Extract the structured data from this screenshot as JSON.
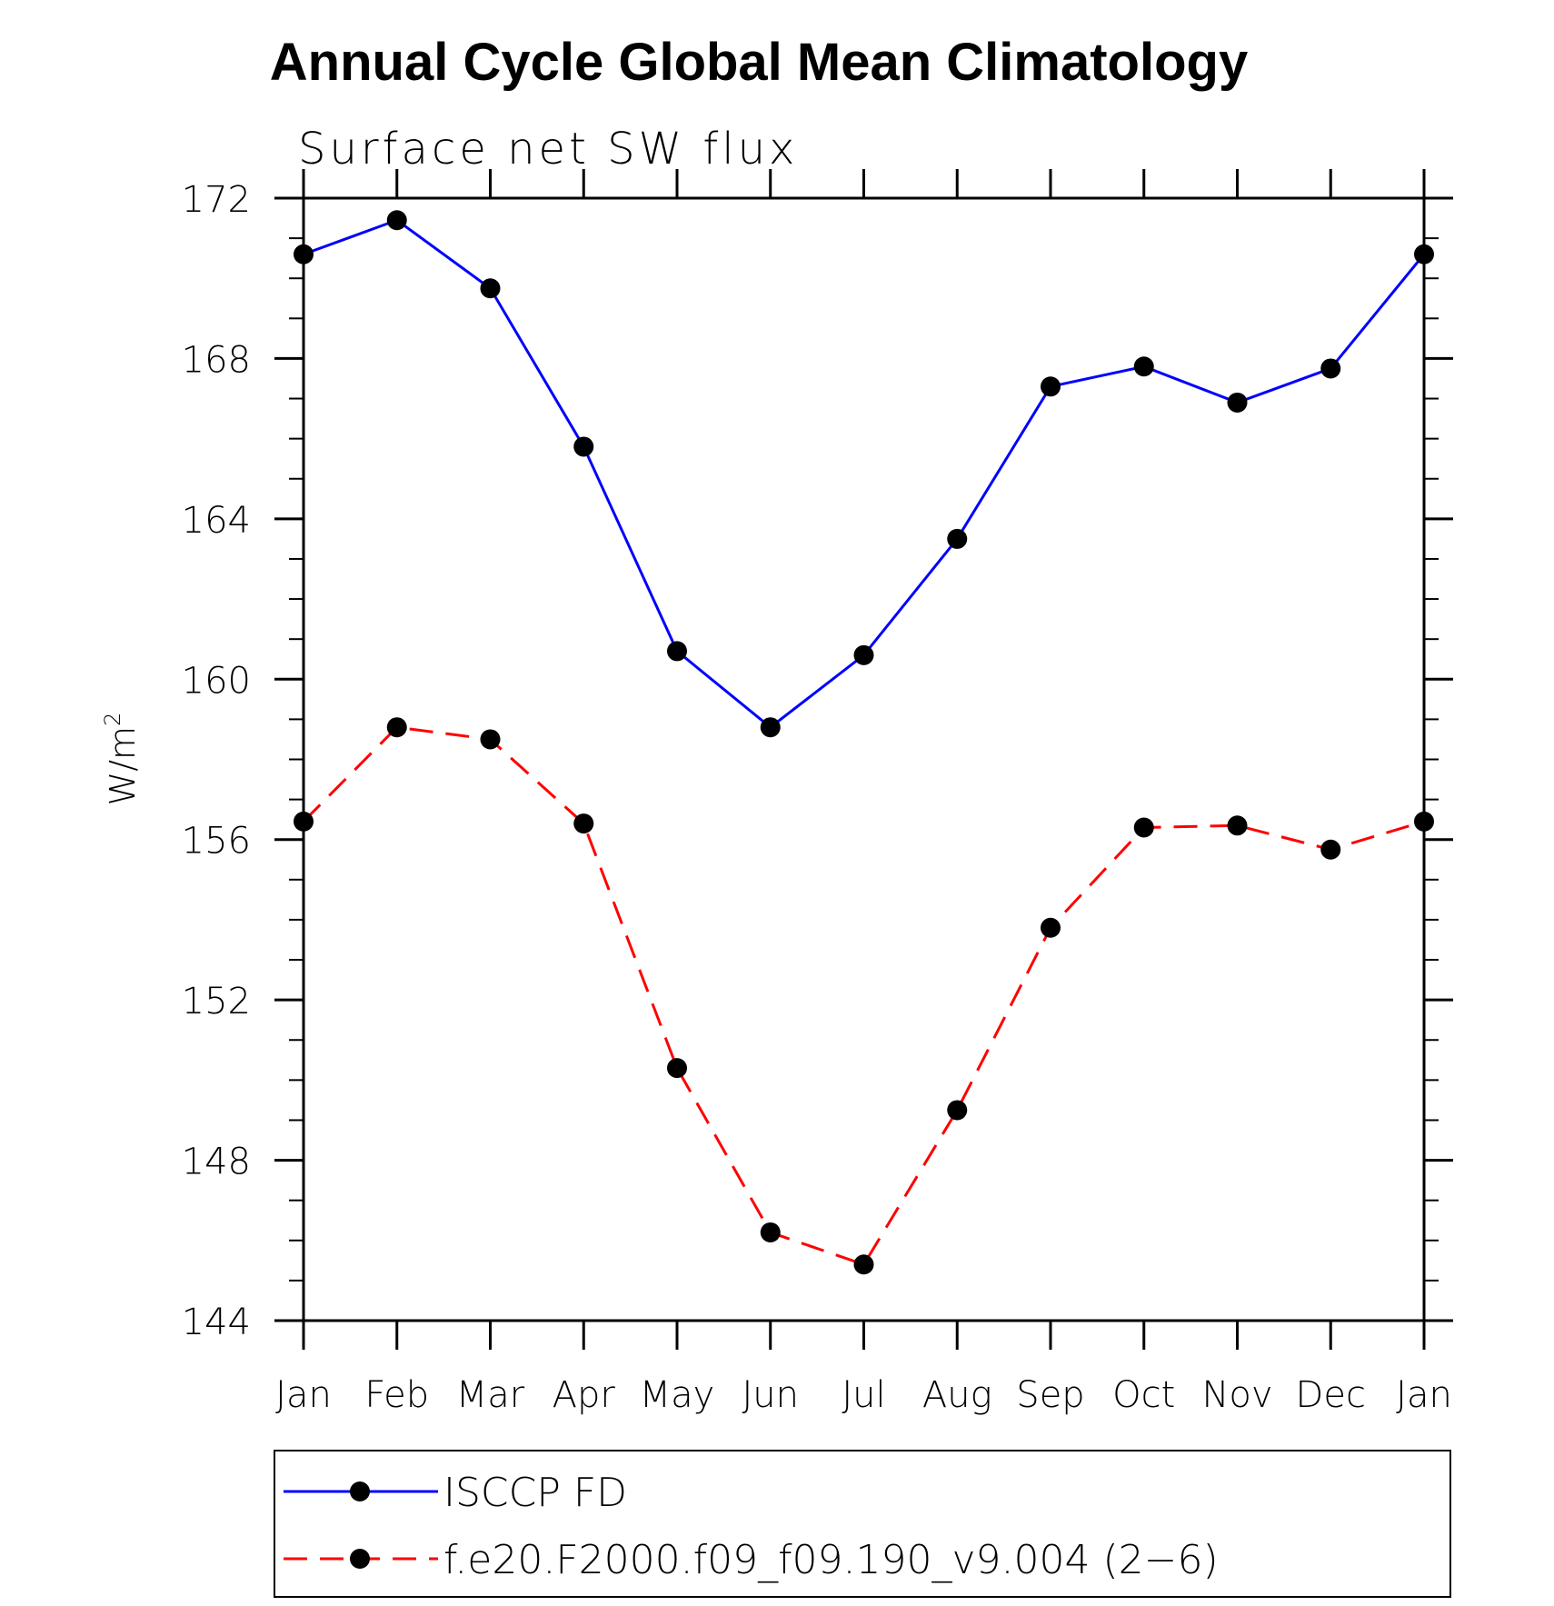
{
  "chart_data": {
    "type": "line",
    "title": "Annual Cycle Global Mean Climatology",
    "subtitle": "Surface net SW flux",
    "xlabel": "",
    "ylabel": "W/m",
    "ylabel_superscript": "2",
    "categories": [
      "Jan",
      "Feb",
      "Mar",
      "Apr",
      "May",
      "Jun",
      "Jul",
      "Aug",
      "Sep",
      "Oct",
      "Nov",
      "Dec",
      "Jan"
    ],
    "ylim": [
      144,
      172
    ],
    "yticks": [
      144,
      148,
      152,
      156,
      160,
      164,
      168,
      172
    ],
    "ytick_labels": [
      "144",
      "148",
      "152",
      "156",
      "160",
      "164",
      "168",
      "172"
    ],
    "y_minor_step": 1,
    "grid": false,
    "legend_position": "bottom",
    "series": [
      {
        "name": "ISCCP FD",
        "color": "#0000ff",
        "line_style": "solid",
        "marker": "filled-circle",
        "marker_color": "#000000",
        "values": [
          170.6,
          171.45,
          169.75,
          165.8,
          160.7,
          158.8,
          160.6,
          163.5,
          167.3,
          167.8,
          166.9,
          167.75,
          170.6
        ]
      },
      {
        "name": "f.e20.F2000.f09_f09.190_v9.004 (2−6)",
        "color": "#ff0000",
        "line_style": "dashed",
        "marker": "filled-circle",
        "marker_color": "#000000",
        "values": [
          156.45,
          158.8,
          158.5,
          156.4,
          150.3,
          146.2,
          145.4,
          149.25,
          153.8,
          156.3,
          156.35,
          155.75,
          156.45
        ]
      }
    ]
  }
}
